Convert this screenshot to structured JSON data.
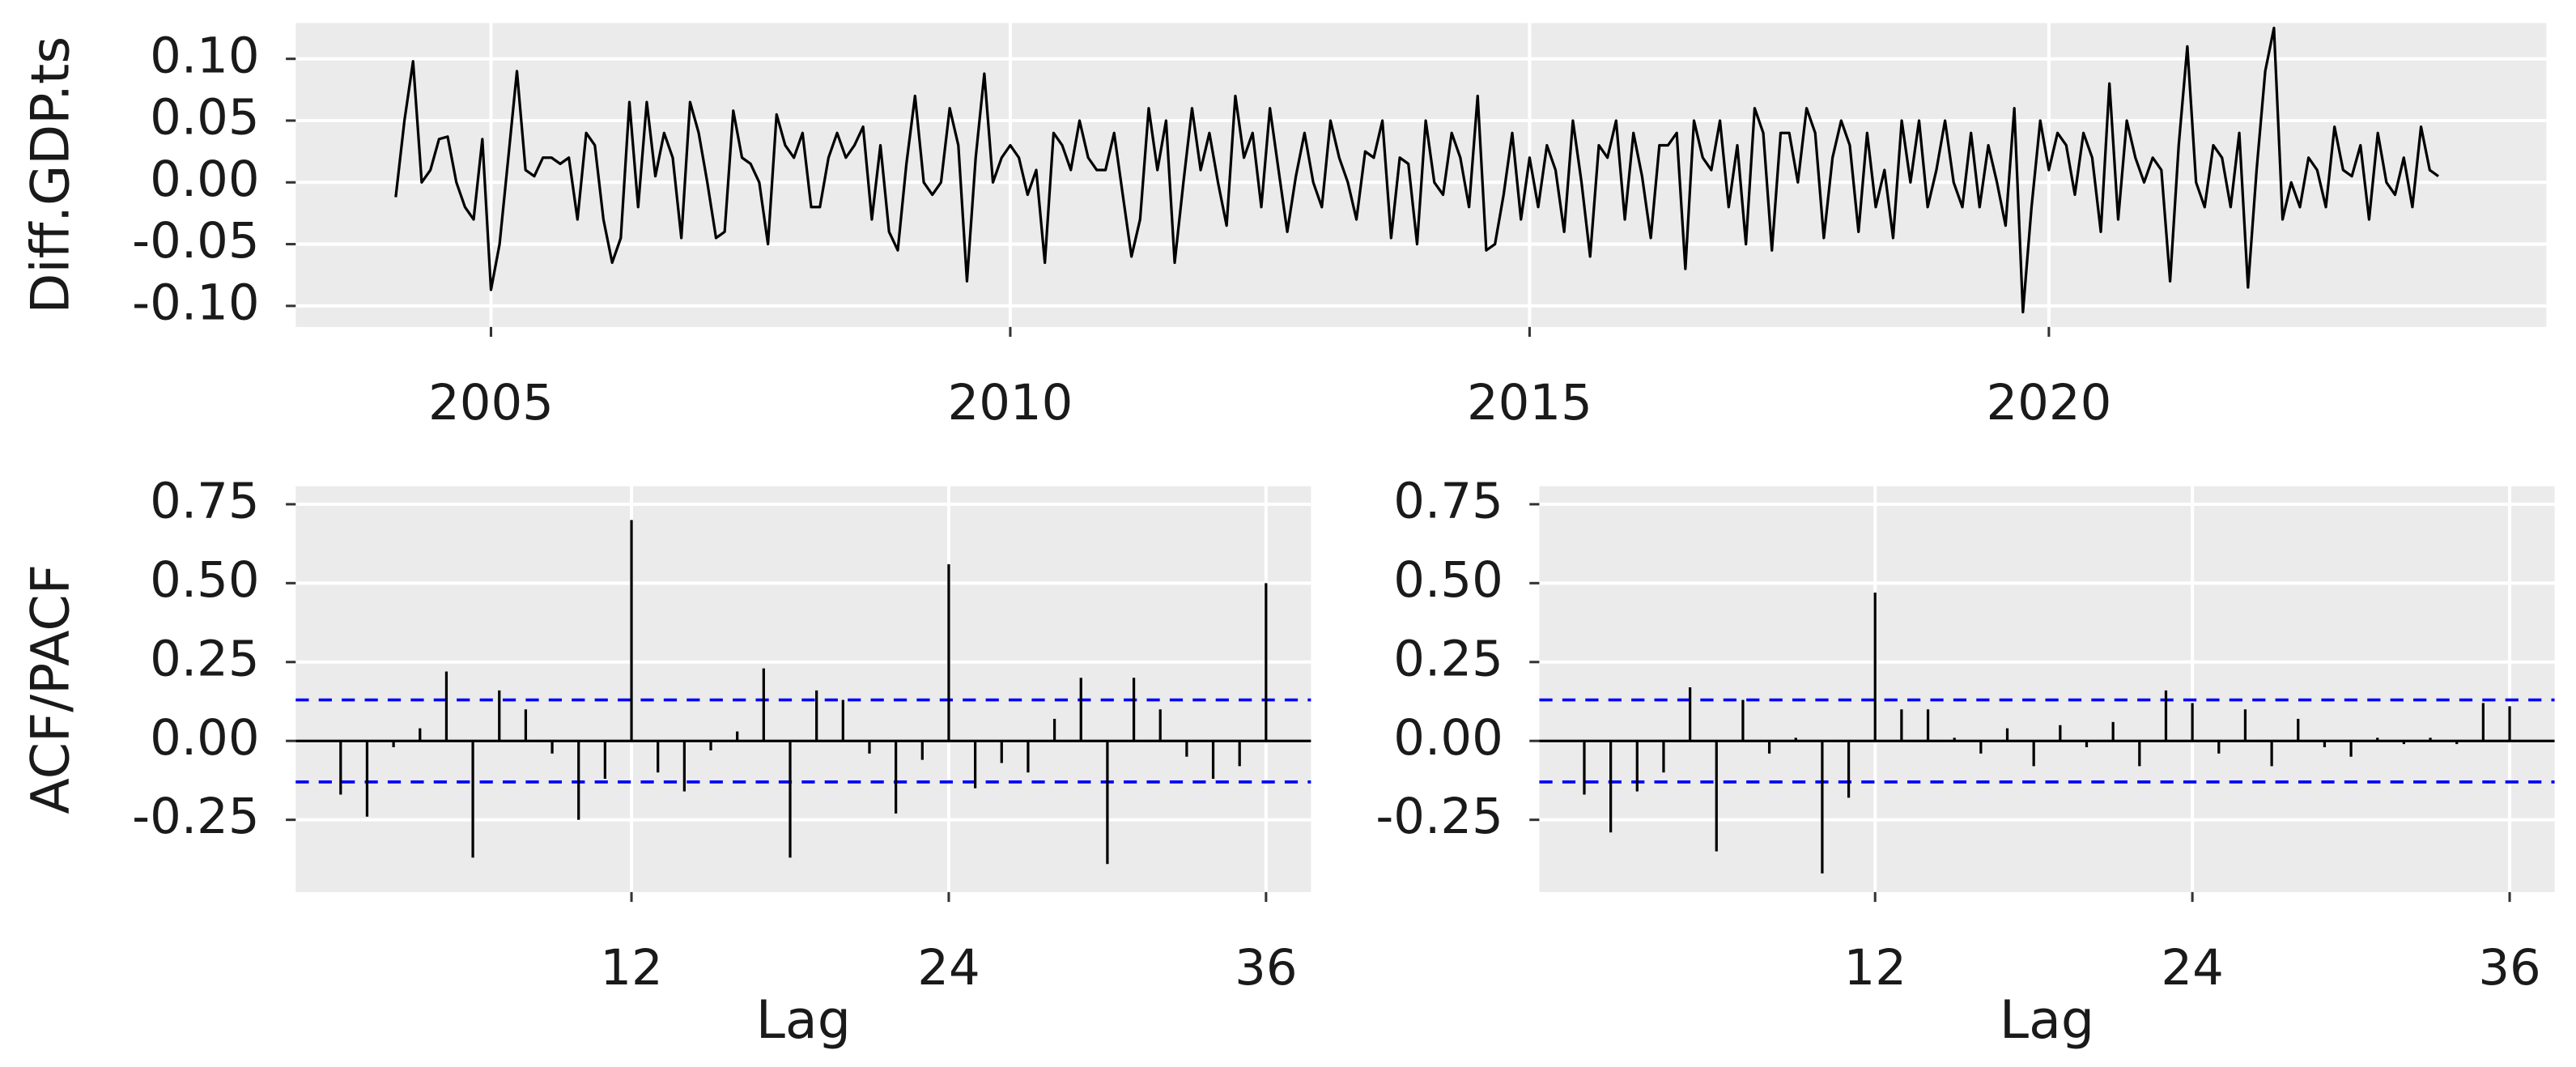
{
  "chart_data": [
    {
      "type": "line",
      "ylabel": "Diff.GDP.ts",
      "color": "#000000",
      "xlim": [
        2003.12,
        2024.79
      ],
      "ylim": [
        -0.117,
        0.129
      ],
      "xticks": [
        2005,
        2010,
        2015,
        2020
      ],
      "yticks": [
        {
          "value": -0.1,
          "label": "-0.10"
        },
        -0.05,
        {
          "value": 0,
          "label": "0.00"
        },
        0.05,
        {
          "value": 0.1,
          "label": "0.10"
        }
      ],
      "grid": true,
      "x": [
        2004.083,
        2004.167,
        2004.25,
        2004.333,
        2004.417,
        2004.5,
        2004.583,
        2004.667,
        2004.75,
        2004.833,
        2004.917,
        2005,
        2005.083,
        2005.167,
        2005.25,
        2005.333,
        2005.417,
        2005.5,
        2005.583,
        2005.667,
        2005.75,
        2005.833,
        2005.917,
        2006,
        2006.083,
        2006.167,
        2006.25,
        2006.333,
        2006.417,
        2006.5,
        2006.583,
        2006.667,
        2006.75,
        2006.833,
        2006.917,
        2007,
        2007.083,
        2007.167,
        2007.25,
        2007.333,
        2007.417,
        2007.5,
        2007.583,
        2007.667,
        2007.75,
        2007.833,
        2007.917,
        2008,
        2008.083,
        2008.167,
        2008.25,
        2008.333,
        2008.417,
        2008.5,
        2008.583,
        2008.667,
        2008.75,
        2008.833,
        2008.917,
        2009,
        2009.083,
        2009.167,
        2009.25,
        2009.333,
        2009.417,
        2009.5,
        2009.583,
        2009.667,
        2009.75,
        2009.833,
        2009.917,
        2010,
        2010.083,
        2010.167,
        2010.25,
        2010.333,
        2010.417,
        2010.5,
        2010.583,
        2010.667,
        2010.75,
        2010.833,
        2010.917,
        2011,
        2011.083,
        2011.167,
        2011.25,
        2011.333,
        2011.417,
        2011.5,
        2011.583,
        2011.667,
        2011.75,
        2011.833,
        2011.917,
        2012,
        2012.083,
        2012.167,
        2012.25,
        2012.333,
        2012.417,
        2012.5,
        2012.583,
        2012.667,
        2012.75,
        2012.833,
        2012.917,
        2013,
        2013.083,
        2013.167,
        2013.25,
        2013.333,
        2013.417,
        2013.5,
        2013.583,
        2013.667,
        2013.75,
        2013.833,
        2013.917,
        2014,
        2014.083,
        2014.167,
        2014.25,
        2014.333,
        2014.417,
        2014.5,
        2014.583,
        2014.667,
        2014.75,
        2014.833,
        2014.917,
        2015,
        2015.083,
        2015.167,
        2015.25,
        2015.333,
        2015.417,
        2015.5,
        2015.583,
        2015.667,
        2015.75,
        2015.833,
        2015.917,
        2016,
        2016.083,
        2016.167,
        2016.25,
        2016.333,
        2016.417,
        2016.5,
        2016.583,
        2016.667,
        2016.75,
        2016.833,
        2016.917,
        2017,
        2017.083,
        2017.167,
        2017.25,
        2017.333,
        2017.417,
        2017.5,
        2017.583,
        2017.667,
        2017.75,
        2017.833,
        2017.917,
        2018,
        2018.083,
        2018.167,
        2018.25,
        2018.333,
        2018.417,
        2018.5,
        2018.583,
        2018.667,
        2018.75,
        2018.833,
        2018.917,
        2019,
        2019.083,
        2019.167,
        2019.25,
        2019.333,
        2019.417,
        2019.5,
        2019.583,
        2019.667,
        2019.75,
        2019.833,
        2019.917,
        2020,
        2020.083,
        2020.167,
        2020.25,
        2020.333,
        2020.417,
        2020.5,
        2020.583,
        2020.667,
        2020.75,
        2020.833,
        2020.917,
        2021,
        2021.083,
        2021.167,
        2021.25,
        2021.333,
        2021.417,
        2021.5,
        2021.583,
        2021.667,
        2021.75,
        2021.833,
        2021.917,
        2022,
        2022.083,
        2022.167,
        2022.25,
        2022.333,
        2022.417,
        2022.5,
        2022.583,
        2022.667,
        2022.75,
        2022.833,
        2022.917,
        2023,
        2023.083,
        2023.167,
        2023.25,
        2023.333,
        2023.417,
        2023.5,
        2023.583,
        2023.667,
        2023.75
      ],
      "values": [
        -0.012,
        0.05,
        0.098,
        0.0,
        0.01,
        0.035,
        0.037,
        0.0,
        -0.02,
        -0.03,
        0.035,
        -0.087,
        -0.05,
        0.02,
        0.09,
        0.01,
        0.005,
        0.02,
        0.02,
        0.015,
        0.02,
        -0.03,
        0.04,
        0.03,
        -0.03,
        -0.065,
        -0.045,
        0.065,
        -0.02,
        0.065,
        0.005,
        0.04,
        0.02,
        -0.045,
        0.065,
        0.04,
        0.0,
        -0.045,
        -0.04,
        0.058,
        0.02,
        0.015,
        0.0,
        -0.05,
        0.055,
        0.03,
        0.02,
        0.04,
        -0.02,
        -0.02,
        0.02,
        0.04,
        0.02,
        0.03,
        0.045,
        -0.03,
        0.03,
        -0.04,
        -0.055,
        0.015,
        0.07,
        0.0,
        -0.01,
        0.0,
        0.06,
        0.03,
        -0.08,
        0.02,
        0.088,
        0.0,
        0.02,
        0.03,
        0.02,
        -0.01,
        0.01,
        -0.065,
        0.04,
        0.03,
        0.01,
        0.05,
        0.02,
        0.01,
        0.01,
        0.04,
        -0.01,
        -0.06,
        -0.03,
        0.06,
        0.01,
        0.05,
        -0.065,
        0.0,
        0.06,
        0.01,
        0.04,
        0.0,
        -0.035,
        0.07,
        0.02,
        0.04,
        -0.02,
        0.06,
        0.01,
        -0.04,
        0.005,
        0.04,
        0.0,
        -0.02,
        0.05,
        0.02,
        0.0,
        -0.03,
        0.025,
        0.02,
        0.05,
        -0.045,
        0.02,
        0.015,
        -0.05,
        0.05,
        0.0,
        -0.01,
        0.04,
        0.02,
        -0.02,
        0.07,
        -0.055,
        -0.05,
        -0.01,
        0.04,
        -0.03,
        0.02,
        -0.02,
        0.03,
        0.01,
        -0.04,
        0.05,
        0.0,
        -0.06,
        0.03,
        0.02,
        0.05,
        -0.03,
        0.04,
        0.005,
        -0.045,
        0.03,
        0.03,
        0.04,
        -0.07,
        0.05,
        0.02,
        0.01,
        0.05,
        -0.02,
        0.03,
        -0.05,
        0.06,
        0.04,
        -0.055,
        0.04,
        0.04,
        0.0,
        0.06,
        0.04,
        -0.045,
        0.02,
        0.05,
        0.03,
        -0.04,
        0.04,
        -0.02,
        0.01,
        -0.045,
        0.05,
        0.0,
        0.05,
        -0.02,
        0.01,
        0.05,
        0.0,
        -0.02,
        0.04,
        -0.02,
        0.03,
        0.0,
        -0.035,
        0.06,
        -0.105,
        -0.02,
        0.05,
        0.01,
        0.04,
        0.03,
        -0.01,
        0.04,
        0.02,
        -0.04,
        0.08,
        -0.03,
        0.05,
        0.02,
        0.0,
        0.02,
        0.01,
        -0.08,
        0.03,
        0.11,
        0.0,
        -0.02,
        0.03,
        0.02,
        -0.02,
        0.04,
        -0.085,
        0.01,
        0.09,
        0.125,
        -0.03,
        0.0,
        -0.02,
        0.02,
        0.01,
        -0.02,
        0.045,
        0.01,
        0.005,
        0.03,
        -0.03,
        0.04,
        0.0,
        -0.01,
        0.02,
        -0.02,
        0.045,
        0.01,
        0.005
      ]
    },
    {
      "type": "stem",
      "ylabel": "ACF/PACF",
      "xlabel": "Lag",
      "color": "#000000",
      "xlim": [
        -0.7,
        37.7
      ],
      "ylim": [
        -0.479,
        0.807
      ],
      "xticks": [
        12,
        24,
        36
      ],
      "yticks": [
        -0.25,
        {
          "value": 0,
          "label": "0.00"
        },
        0.25,
        {
          "value": 0.5,
          "label": "0.50"
        },
        0.75
      ],
      "grid": true,
      "ci_bounds": [
        -0.13,
        0.13
      ],
      "ci_color": "#0000ff",
      "x": [
        1,
        2,
        3,
        4,
        5,
        6,
        7,
        8,
        9,
        10,
        11,
        12,
        13,
        14,
        15,
        16,
        17,
        18,
        19,
        20,
        21,
        22,
        23,
        24,
        25,
        26,
        27,
        28,
        29,
        30,
        31,
        32,
        33,
        34,
        35,
        36
      ],
      "values": [
        -0.17,
        -0.24,
        -0.02,
        0.04,
        0.22,
        -0.37,
        0.16,
        0.1,
        -0.04,
        -0.25,
        -0.12,
        0.7,
        -0.1,
        -0.16,
        -0.03,
        0.03,
        0.23,
        -0.37,
        0.16,
        0.13,
        -0.04,
        -0.23,
        -0.06,
        0.56,
        -0.15,
        -0.07,
        -0.1,
        0.07,
        0.2,
        -0.39,
        0.2,
        0.1,
        -0.05,
        -0.12,
        -0.08,
        0.5
      ]
    },
    {
      "type": "stem",
      "xlabel": "Lag",
      "color": "#000000",
      "xlim": [
        -0.7,
        37.7
      ],
      "ylim": [
        -0.479,
        0.807
      ],
      "xticks": [
        12,
        24,
        36
      ],
      "yticks": [
        -0.25,
        {
          "value": 0,
          "label": "0.00"
        },
        0.25,
        {
          "value": 0.5,
          "label": "0.50"
        },
        0.75
      ],
      "grid": true,
      "ci_bounds": [
        -0.13,
        0.13
      ],
      "ci_color": "#0000ff",
      "x": [
        1,
        2,
        3,
        4,
        5,
        6,
        7,
        8,
        9,
        10,
        11,
        12,
        13,
        14,
        15,
        16,
        17,
        18,
        19,
        20,
        21,
        22,
        23,
        24,
        25,
        26,
        27,
        28,
        29,
        30,
        31,
        32,
        33,
        34,
        35,
        36
      ],
      "values": [
        -0.17,
        -0.29,
        -0.16,
        -0.1,
        0.17,
        -0.35,
        0.13,
        -0.04,
        0.01,
        -0.42,
        -0.18,
        0.47,
        0.1,
        0.1,
        0.01,
        -0.04,
        0.04,
        -0.08,
        0.05,
        -0.02,
        0.06,
        -0.08,
        0.16,
        0.12,
        -0.04,
        0.1,
        -0.08,
        0.07,
        -0.02,
        -0.05,
        0.01,
        -0.01,
        0.01,
        -0.01,
        0.12,
        0.11
      ]
    }
  ]
}
